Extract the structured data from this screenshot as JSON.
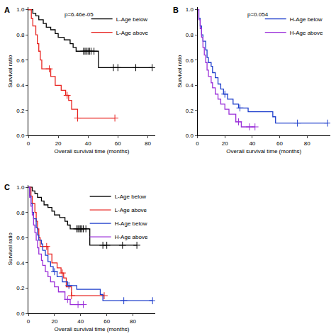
{
  "chart_data": [
    {
      "type": "line",
      "label": "A",
      "annotation": "p=6.46e-05",
      "line_style": "step",
      "marker": "cross",
      "x_label": "Overall survival time (months)",
      "y_label": "Survival ratio",
      "xlim": [
        0,
        85
      ],
      "xticks": [
        0,
        20,
        40,
        60,
        80
      ],
      "ylim": [
        0,
        1.02
      ],
      "yticks": [
        {
          "value": 0,
          "label": "0.0"
        },
        {
          "value": 0.2,
          "label": "0.2"
        },
        {
          "value": 0.4,
          "label": "0.4"
        },
        {
          "value": 0.6,
          "label": "0.6"
        },
        {
          "value": 0.8,
          "label": "0.8"
        },
        {
          "value": 1,
          "label": "1.0"
        }
      ],
      "grid": false,
      "legend": "top-right",
      "series": [
        {
          "name": "L-Age below",
          "color": "#000000",
          "x": [
            0,
            3,
            5,
            7,
            10,
            12,
            15,
            18,
            20,
            24,
            28,
            30,
            32,
            47,
            83
          ],
          "values": [
            1,
            0.97,
            0.95,
            0.92,
            0.89,
            0.86,
            0.84,
            0.81,
            0.78,
            0.76,
            0.73,
            0.7,
            0.67,
            0.54,
            0.54
          ],
          "censored": [
            37,
            38,
            39,
            40,
            41,
            42,
            44,
            57,
            60,
            72,
            83
          ]
        },
        {
          "name": "L-Age above",
          "color": "#e8231f",
          "x": [
            0,
            2,
            3,
            5,
            6,
            7,
            8,
            9,
            15,
            18,
            22,
            25,
            27,
            29,
            33,
            58
          ],
          "values": [
            1,
            0.93,
            0.87,
            0.8,
            0.73,
            0.67,
            0.6,
            0.53,
            0.47,
            0.4,
            0.36,
            0.32,
            0.28,
            0.21,
            0.14,
            0.14
          ],
          "censored": [
            14,
            26,
            33,
            58
          ]
        }
      ]
    },
    {
      "type": "line",
      "label": "B",
      "annotation": "p=0.054",
      "line_style": "step",
      "marker": "cross",
      "x_label": "Overall survival time (months)",
      "y_label": "Survival ratio",
      "xlim": [
        0,
        97
      ],
      "xticks": [
        0,
        20,
        40,
        60,
        80
      ],
      "ylim": [
        0,
        1.02
      ],
      "yticks": [
        {
          "value": 0,
          "label": "0.0"
        },
        {
          "value": 0.2,
          "label": "0.2"
        },
        {
          "value": 0.4,
          "label": "0.4"
        },
        {
          "value": 0.6,
          "label": "0.6"
        },
        {
          "value": 0.8,
          "label": "0.8"
        },
        {
          "value": 1,
          "label": "1.0"
        }
      ],
      "grid": false,
      "legend": "top-right",
      "series": [
        {
          "name": "H-Age below",
          "color": "#1f3fcc",
          "x": [
            0,
            1,
            2,
            3,
            4,
            6,
            7,
            8,
            10,
            11,
            13,
            15,
            17,
            19,
            22,
            26,
            30,
            37,
            55,
            57,
            95
          ],
          "values": [
            1,
            0.93,
            0.87,
            0.8,
            0.75,
            0.68,
            0.62,
            0.58,
            0.55,
            0.5,
            0.46,
            0.41,
            0.37,
            0.33,
            0.29,
            0.25,
            0.22,
            0.19,
            0.15,
            0.1,
            0.1
          ],
          "censored": [
            20,
            31,
            73,
            95
          ]
        },
        {
          "name": "H-Age above",
          "color": "#9b30d9",
          "x": [
            0,
            1,
            2,
            3,
            4,
            5,
            6,
            7,
            8,
            10,
            11,
            13,
            15,
            17,
            20,
            23,
            28,
            32,
            42
          ],
          "values": [
            1,
            0.92,
            0.85,
            0.78,
            0.7,
            0.64,
            0.58,
            0.52,
            0.47,
            0.42,
            0.38,
            0.33,
            0.29,
            0.25,
            0.21,
            0.17,
            0.11,
            0.07,
            0.07
          ],
          "censored": [
            30,
            38,
            42
          ]
        }
      ]
    },
    {
      "type": "line",
      "label": "C",
      "line_style": "step",
      "marker": "cross",
      "x_label": "Overall survival time (months)",
      "y_label": "Survival ratio",
      "xlim": [
        0,
        97
      ],
      "xticks": [
        0,
        20,
        40,
        60,
        80
      ],
      "ylim": [
        0,
        1.02
      ],
      "yticks": [
        {
          "value": 0,
          "label": "0.0"
        },
        {
          "value": 0.2,
          "label": "0.2"
        },
        {
          "value": 0.4,
          "label": "0.4"
        },
        {
          "value": 0.6,
          "label": "0.6"
        },
        {
          "value": 0.8,
          "label": "0.8"
        },
        {
          "value": 1,
          "label": "1.0"
        }
      ],
      "grid": false,
      "legend": "top-right",
      "series": [
        {
          "name": "L-Age below",
          "color": "#000000",
          "x": [
            0,
            3,
            5,
            7,
            10,
            12,
            15,
            18,
            20,
            24,
            28,
            30,
            32,
            47,
            83
          ],
          "values": [
            1,
            0.97,
            0.95,
            0.92,
            0.89,
            0.86,
            0.84,
            0.81,
            0.78,
            0.76,
            0.73,
            0.7,
            0.67,
            0.54,
            0.54
          ],
          "censored": [
            37,
            38,
            39,
            40,
            41,
            42,
            44,
            57,
            60,
            72,
            83
          ]
        },
        {
          "name": "L-Age above",
          "color": "#e8231f",
          "x": [
            0,
            2,
            3,
            5,
            6,
            7,
            8,
            9,
            15,
            18,
            22,
            25,
            27,
            29,
            33,
            58
          ],
          "values": [
            1,
            0.93,
            0.87,
            0.8,
            0.73,
            0.67,
            0.6,
            0.53,
            0.47,
            0.4,
            0.36,
            0.32,
            0.28,
            0.21,
            0.14,
            0.14
          ],
          "censored": [
            14,
            26,
            33,
            58
          ]
        },
        {
          "name": "H-Age below",
          "color": "#1f3fcc",
          "x": [
            0,
            1,
            2,
            3,
            4,
            6,
            7,
            8,
            10,
            11,
            13,
            15,
            17,
            19,
            22,
            26,
            30,
            37,
            55,
            57,
            95
          ],
          "values": [
            1,
            0.93,
            0.87,
            0.8,
            0.75,
            0.68,
            0.62,
            0.58,
            0.55,
            0.5,
            0.46,
            0.41,
            0.37,
            0.33,
            0.29,
            0.25,
            0.22,
            0.19,
            0.15,
            0.1,
            0.1
          ],
          "censored": [
            20,
            31,
            73,
            95
          ]
        },
        {
          "name": "H-Age above",
          "color": "#9b30d9",
          "x": [
            0,
            1,
            2,
            3,
            4,
            5,
            6,
            7,
            8,
            10,
            11,
            13,
            15,
            17,
            20,
            23,
            28,
            32,
            42
          ],
          "values": [
            1,
            0.92,
            0.85,
            0.78,
            0.7,
            0.64,
            0.58,
            0.52,
            0.47,
            0.42,
            0.38,
            0.33,
            0.29,
            0.25,
            0.21,
            0.17,
            0.11,
            0.07,
            0.07
          ],
          "censored": [
            30,
            38,
            42
          ]
        }
      ]
    }
  ]
}
